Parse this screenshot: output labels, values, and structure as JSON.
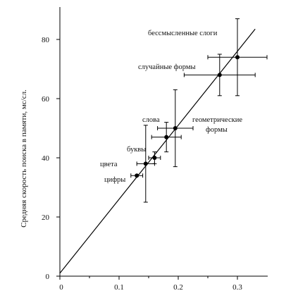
{
  "chart_data": {
    "type": "scatter",
    "title": "",
    "xlabel": "",
    "ylabel": "Средняя скорость поиска в памяти, мс/сл.",
    "xlim": [
      0,
      0.36
    ],
    "ylim": [
      0,
      90
    ],
    "x_ticks": [
      "0",
      "0.1",
      "0.2",
      "0.3"
    ],
    "y_ticks": [
      "0",
      "20",
      "40",
      "60",
      "80"
    ],
    "grid": false,
    "points": [
      {
        "label": "цифры",
        "x": 0.13,
        "y": 34,
        "x_err": 0.01,
        "y_err": 0
      },
      {
        "label": "цвета",
        "x": 0.145,
        "y": 38,
        "x_err": 0.015,
        "y_err": 13
      },
      {
        "label": "буквы",
        "x": 0.16,
        "y": 40,
        "x_err": 0.01,
        "y_err": 2
      },
      {
        "label": "",
        "x": 0.18,
        "y": 47,
        "x_err": 0.025,
        "y_err": 5
      },
      {
        "label": "слова",
        "x": 0.195,
        "y": 50,
        "x_err": 0.03,
        "y_err": 13
      },
      {
        "label": "геометрические формы",
        "x": 0.195,
        "y": 50,
        "x_err": 0.03,
        "y_err": 13
      },
      {
        "label": "случайные формы",
        "x": 0.27,
        "y": 68,
        "x_err": 0.06,
        "y_err": 7
      },
      {
        "label": "бессмысленные слоги",
        "x": 0.3,
        "y": 74,
        "x_err": 0.05,
        "y_err": 13
      }
    ],
    "fit_line": {
      "x": [
        0,
        0.33
      ],
      "y": [
        1,
        83.5
      ]
    }
  }
}
